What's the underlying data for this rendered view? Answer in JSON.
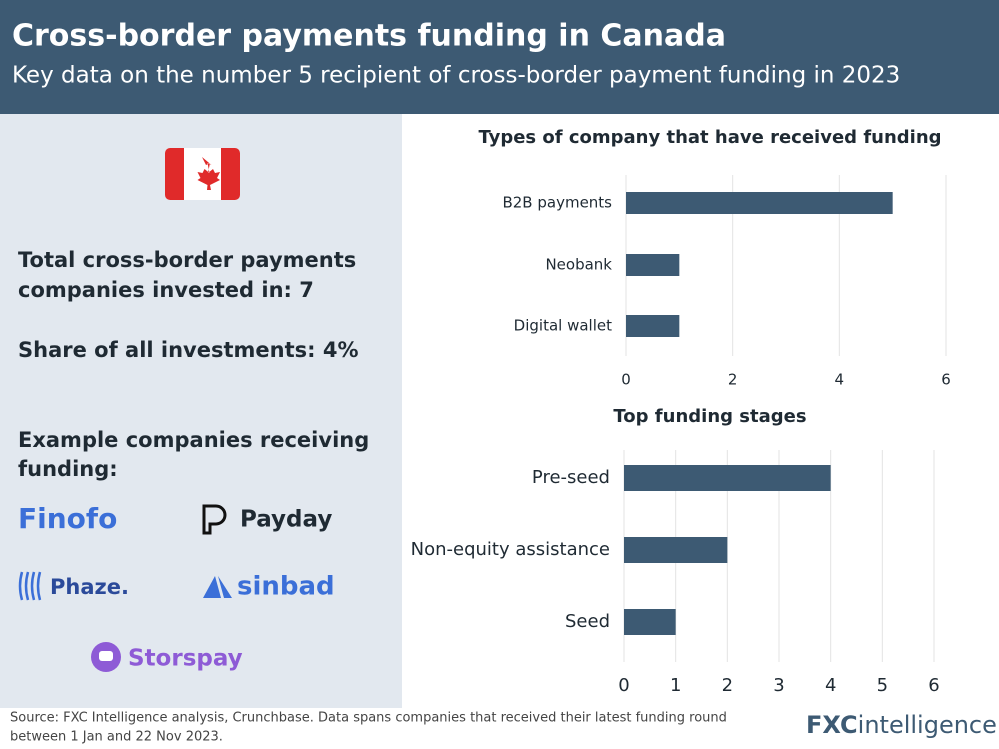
{
  "header": {
    "title": "Cross-border payments funding in Canada",
    "subtitle": "Key data on the number 5 recipient of cross-border payment funding in 2023"
  },
  "left_panel": {
    "total_lines": [
      "Total cross-border payments",
      "companies invested in: 7"
    ],
    "share": "Share of all investments: 4%",
    "examples_lines": [
      "Example companies receiving",
      "funding:"
    ],
    "companies": [
      "Finofo",
      "Payday",
      "Phaze.",
      "sinbad",
      "Storspay"
    ]
  },
  "chart_data": [
    {
      "type": "bar",
      "orientation": "horizontal",
      "title": "Types of company that have received funding",
      "categories": [
        "B2B payments",
        "Neobank",
        "Digital wallet"
      ],
      "values": [
        5,
        1,
        1
      ],
      "color": "#3d5a73",
      "xlim": [
        0,
        6
      ],
      "xticks": [
        0,
        2,
        4,
        6
      ],
      "grid": true
    },
    {
      "type": "bar",
      "orientation": "horizontal",
      "title": "Top funding stages",
      "categories": [
        "Pre-seed",
        "Non-equity assistance",
        "Seed"
      ],
      "values": [
        4,
        2,
        1
      ],
      "color": "#3d5a73",
      "xlim": [
        0,
        6
      ],
      "xticks": [
        0,
        1,
        2,
        3,
        4,
        5,
        6
      ],
      "grid": true
    }
  ],
  "source": [
    "Source: FXC Intelligence analysis, Crunchbase. Data spans companies that received their latest funding round",
    "between 1 Jan and 22 Nov 2023."
  ],
  "brand": {
    "prefix": "FXC",
    "suffix": "intelligence"
  }
}
